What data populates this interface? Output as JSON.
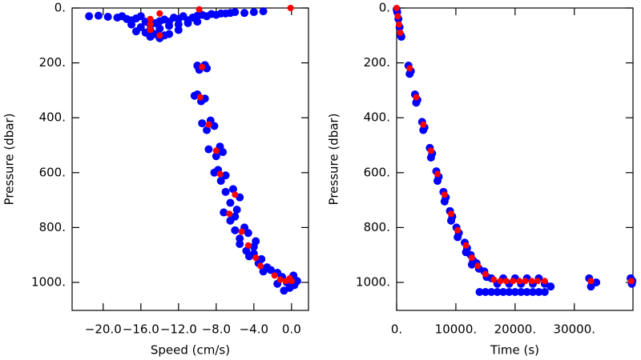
{
  "chart_data": [
    {
      "type": "scatter",
      "x_label": "Speed (cm/s)",
      "y_label": "Pressure (dbar)",
      "y_inverted": true,
      "xlim": [
        -23.3,
        1.8
      ],
      "ylim": [
        0,
        1102
      ],
      "xticks": [
        {
          "value": -20,
          "label": "−20.0"
        },
        {
          "value": -16,
          "label": "−16.0"
        },
        {
          "value": -12,
          "label": "−12.0"
        },
        {
          "value": -8,
          "label": "−8.0"
        },
        {
          "value": -4,
          "label": "−4.0"
        },
        {
          "value": 0,
          "label": "0.0"
        }
      ],
      "yticks": [
        {
          "value": 0,
          "label": "0."
        },
        {
          "value": 200,
          "label": "200."
        },
        {
          "value": 400,
          "label": "400."
        },
        {
          "value": 600,
          "label": "600."
        },
        {
          "value": 800,
          "label": "800."
        },
        {
          "value": 1000,
          "label": "1000."
        }
      ],
      "series": [
        {
          "color": "#0000ff",
          "x": [
            -21.5,
            -20.5,
            -19.5,
            -18.5,
            -18,
            -17.5,
            -17,
            -16.5,
            -16,
            -15.5,
            -15,
            -14.5,
            -14,
            -13.5,
            -13,
            -12.5,
            -12,
            -11.5,
            -11,
            -10.5,
            -10,
            -9.5,
            -9,
            -8.5,
            -8,
            -7.5,
            -7,
            -6.5,
            -6,
            -5,
            -4,
            -3,
            -16,
            -15,
            -14,
            -13,
            -12,
            -11,
            -15.5,
            -14.5,
            -13.5,
            -16.5,
            -15,
            -14,
            -13,
            -17,
            -12,
            -10,
            -10,
            -9,
            -9.8,
            -9.2,
            -10.3,
            -9.2,
            -9.6,
            -10,
            -9.5,
            -8.2,
            -9,
            -8.6,
            -8.8,
            -7.3,
            -8,
            -7.6,
            -8.2,
            -7,
            -7.5,
            -7.8,
            -7,
            -5.5,
            -6.5,
            -6.2,
            -7.2,
            -6,
            -6.5,
            -5.8,
            -6,
            -4.6,
            -5.5,
            -5,
            -5.5,
            -4,
            -4.8,
            -3.8,
            -4.5,
            -3.2,
            -3.5,
            -4,
            -2.6,
            -2.2,
            -3,
            -1.5,
            -1,
            -0.5,
            0.3,
            -0.2,
            0.6,
            -1.5,
            -0.8,
            0.2
          ],
          "values": [
            30,
            28,
            32,
            35,
            30,
            40,
            45,
            38,
            30,
            50,
            60,
            55,
            48,
            42,
            50,
            35,
            40,
            30,
            45,
            35,
            28,
            25,
            30,
            22,
            25,
            20,
            20,
            18,
            15,
            18,
            15,
            12,
            70,
            80,
            75,
            65,
            60,
            55,
            90,
            95,
            100,
            85,
            105,
            110,
            95,
            60,
            80,
            50,
            210,
            220,
            225,
            208,
            320,
            330,
            340,
            315,
            420,
            430,
            445,
            410,
            515,
            525,
            540,
            505,
            600,
            610,
            630,
            590,
            670,
            690,
            710,
            660,
            745,
            760,
            775,
            735,
            810,
            820,
            840,
            800,
            860,
            870,
            885,
            850,
            905,
            915,
            930,
            895,
            945,
            955,
            960,
            965,
            980,
            1000,
            1010,
            1020,
            995,
            1005,
            1030,
            975
          ]
        },
        {
          "color": "#ff0000",
          "x": [
            -0.1,
            -14,
            -15,
            -15,
            -15,
            -14,
            -9.8,
            -9.5,
            -9.7,
            -8.8,
            -8,
            -7.6,
            -6,
            -6.6,
            -5.3,
            -4.6,
            -3.8,
            -3.3,
            -1.8,
            -1.2,
            -0.6,
            0,
            -0.2
          ],
          "values": [
            0,
            20,
            40,
            60,
            80,
            100,
            5,
            215,
            325,
            425,
            520,
            605,
            680,
            750,
            815,
            865,
            910,
            940,
            975,
            990,
            995,
            995,
            985
          ]
        }
      ]
    },
    {
      "type": "scatter",
      "x_label": "Time (s)",
      "y_label": "Pressure (dbar)",
      "y_inverted": true,
      "xlim": [
        0,
        39900
      ],
      "ylim": [
        0,
        1102
      ],
      "xticks": [
        {
          "value": 0,
          "label": "0."
        },
        {
          "value": 10000,
          "label": "10000."
        },
        {
          "value": 20000,
          "label": "20000."
        },
        {
          "value": 30000,
          "label": "30000."
        }
      ],
      "yticks": [
        {
          "value": 0,
          "label": "0."
        },
        {
          "value": 200,
          "label": "200."
        },
        {
          "value": 400,
          "label": "400."
        },
        {
          "value": 600,
          "label": "600."
        },
        {
          "value": 800,
          "label": "800."
        },
        {
          "value": 1000,
          "label": "1000."
        }
      ],
      "series": [
        {
          "color": "#0000ff",
          "x": [
            0,
            100,
            300,
            500,
            700,
            800,
            2000,
            2400,
            2200,
            3100,
            3500,
            3300,
            4300,
            4700,
            4500,
            5600,
            6000,
            5800,
            6700,
            7100,
            6900,
            7900,
            8300,
            8100,
            9000,
            9400,
            9200,
            10100,
            10500,
            10300,
            11500,
            11900,
            11700,
            12500,
            12900,
            12700,
            13500,
            13900,
            14800,
            15200,
            16000,
            17000,
            18000,
            19000,
            20000,
            21000,
            22000,
            23000,
            24000,
            25000,
            14000,
            15000,
            16000,
            17000,
            18000,
            19000,
            20000,
            21000,
            22000,
            23000,
            24000,
            25000,
            26000,
            32500,
            33000,
            32800,
            33700,
            39500,
            39700,
            39800
          ],
          "values": [
            5,
            15,
            40,
            70,
            100,
            105,
            210,
            230,
            240,
            315,
            335,
            345,
            415,
            435,
            445,
            510,
            530,
            545,
            595,
            615,
            630,
            670,
            690,
            705,
            740,
            760,
            775,
            800,
            820,
            835,
            855,
            875,
            890,
            900,
            920,
            935,
            930,
            950,
            960,
            980,
            985,
            1005,
            985,
            1005,
            985,
            1005,
            985,
            1005,
            985,
            1005,
            1035,
            1035,
            1035,
            1035,
            1035,
            1035,
            1035,
            1035,
            1035,
            1035,
            1035,
            1035,
            1015,
            985,
            1005,
            1015,
            1000,
            985,
            1005,
            995
          ]
        },
        {
          "color": "#ff0000",
          "x": [
            0,
            200,
            400,
            600,
            2200,
            3300,
            4500,
            5800,
            6900,
            8100,
            9200,
            10300,
            11700,
            12700,
            13700,
            15000,
            16400,
            17500,
            18500,
            19600,
            20700,
            21700,
            22800,
            23800,
            25000,
            32800,
            39600
          ],
          "values": [
            0,
            30,
            60,
            90,
            220,
            325,
            425,
            520,
            605,
            680,
            750,
            810,
            865,
            910,
            940,
            970,
            990,
            995,
            995,
            995,
            995,
            995,
            995,
            995,
            995,
            995,
            995
          ]
        }
      ]
    }
  ]
}
